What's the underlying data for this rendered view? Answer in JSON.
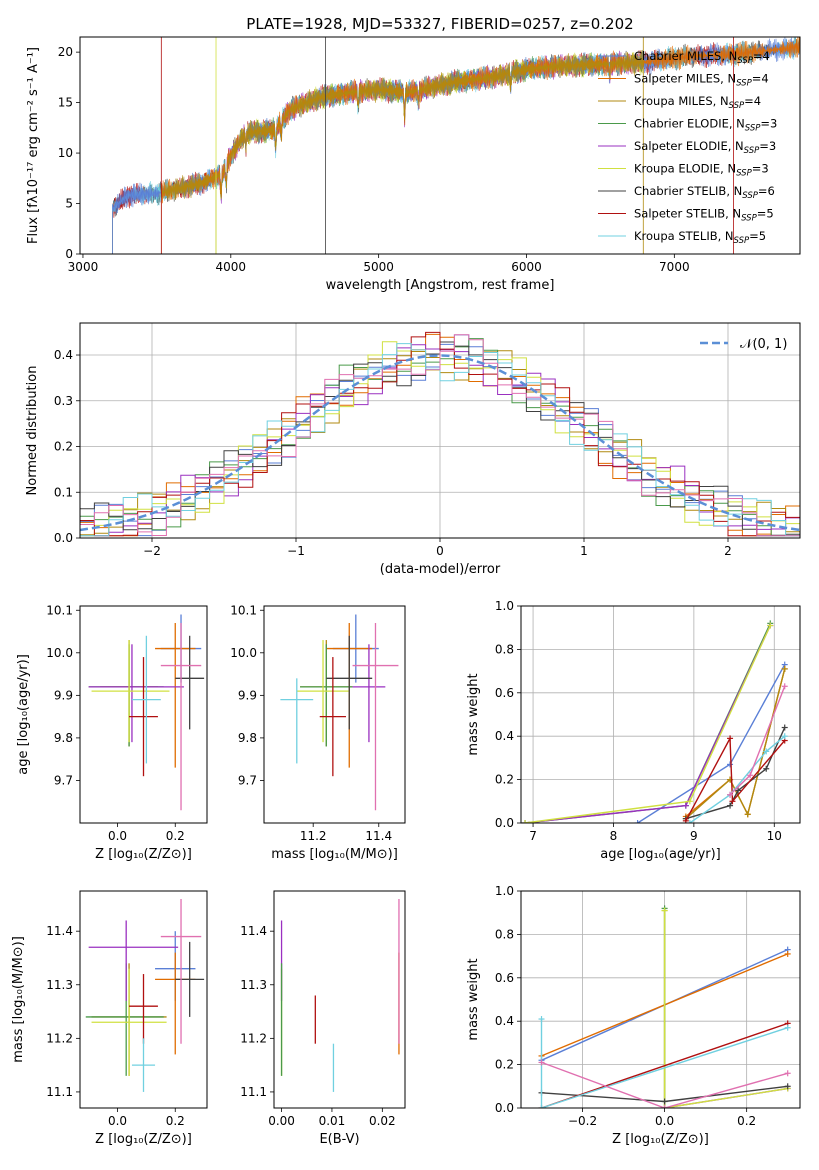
{
  "title": "PLATE=1928, MJD=53327, FIBERID=0257, z=0.202",
  "colors": {
    "ChM": "#5a7fd6",
    "SaM": "#e06c00",
    "KrM": "#b08a10",
    "ChE": "#4a9a4a",
    "SaE": "#9a30c0",
    "KrE": "#d0e040",
    "ChS": "#404040",
    "SaS": "#b01010",
    "KrS": "#70d0e0",
    "pinkline": "#e070b0",
    "gaussian": "#5b8fd6",
    "grid": "#b0b0b0"
  },
  "panels": {
    "spectrum": {
      "xlabel": "wavelength [Angstrom, rest frame]",
      "ylabel": "Flux [fλ10⁻¹⁷ erg cm⁻² s⁻¹ A⁻¹]",
      "legend": [
        {
          "key": "ChM",
          "prefix": "Chabrier MILES, N",
          "sub": "SSP",
          "suffix": "=4"
        },
        {
          "key": "SaM",
          "prefix": "Salpeter MILES, N",
          "sub": "SSP",
          "suffix": "=4"
        },
        {
          "key": "KrM",
          "prefix": "Kroupa MILES, N",
          "sub": "SSP",
          "suffix": "=4"
        },
        {
          "key": "ChE",
          "prefix": "Chabrier ELODIE, N",
          "sub": "SSP",
          "suffix": "=3"
        },
        {
          "key": "SaE",
          "prefix": "Salpeter ELODIE, N",
          "sub": "SSP",
          "suffix": "=3"
        },
        {
          "key": "KrE",
          "prefix": "Kroupa ELODIE, N",
          "sub": "SSP",
          "suffix": "=3"
        },
        {
          "key": "ChS",
          "prefix": "Chabrier STELIB, N",
          "sub": "SSP",
          "suffix": "=6"
        },
        {
          "key": "SaS",
          "prefix": "Salpeter STELIB, N",
          "sub": "SSP",
          "suffix": "=5"
        },
        {
          "key": "KrS",
          "prefix": "Kroupa STELIB, N",
          "sub": "SSP",
          "suffix": "=5"
        }
      ]
    },
    "residuals": {
      "xlabel": "(data-model)/error",
      "ylabel": "Normed distribution",
      "legend": "𝒩(0, 1)"
    },
    "age_Z": {
      "xlabel": "Z [log₁₀(Z/Z⊙)]",
      "ylabel": "age  [log₁₀(age/yr)]"
    },
    "age_mass": {
      "xlabel": "mass [log₁₀(M/M⊙)]"
    },
    "weight_age": {
      "xlabel": "age  [log₁₀(age/yr)]",
      "ylabel": "mass weight"
    },
    "mass_Z": {
      "xlabel": "Z [log₁₀(Z/Z⊙)]",
      "ylabel": "mass [log₁₀(M/M⊙)]"
    },
    "mass_ebv": {
      "xlabel": "E(B-V)"
    },
    "weight_Z": {
      "xlabel": "Z [log₁₀(Z/Z⊙)]",
      "ylabel": "mass weight"
    }
  },
  "chart_data": [
    {
      "type": "line",
      "title": "PLATE=1928, MJD=53327, FIBERID=0257, z=0.202",
      "xlabel": "wavelength [Angstrom, rest frame]",
      "ylabel": "Flux [fλ10⁻¹⁷ erg cm⁻² s⁻¹ A⁻¹]",
      "xlim": [
        2980,
        7850
      ],
      "ylim": [
        0,
        21.5
      ],
      "xticks": [
        3000,
        4000,
        5000,
        6000,
        7000
      ],
      "yticks": [
        0,
        5,
        10,
        15,
        20
      ],
      "grid": false,
      "legend_position": "upper right",
      "continuum": {
        "x": [
          3200,
          3300,
          3500,
          3800,
          3950,
          4000,
          4100,
          4300,
          4400,
          4600,
          4800,
          5000,
          5200,
          5500,
          5800,
          6000,
          6200,
          6500,
          6800,
          7100,
          7400,
          7850
        ],
        "y": [
          4.5,
          5.8,
          6.0,
          7.0,
          8.0,
          9.8,
          12.0,
          12.3,
          14.3,
          15.5,
          16.0,
          16.3,
          16.0,
          17.0,
          17.6,
          18.3,
          18.6,
          18.8,
          19.0,
          19.6,
          19.8,
          20.5
        ]
      },
      "series_starts": {
        "ChM": 3200,
        "SaM": 3530,
        "KrM": 3530,
        "ChE": 3900,
        "SaE": 3900,
        "KrE": 3900,
        "ChS": 3200,
        "SaS": 3200,
        "KrS": 3200
      },
      "series_ends": {
        "ChM": 7850,
        "SaM": 7850,
        "KrM": 6790,
        "ChE": 6790,
        "SaE": 6790,
        "KrE": 6790,
        "ChS": 7850,
        "SaS": 7400,
        "KrS": 7850
      },
      "vlines": [
        {
          "key": "ChS",
          "x": 4640
        },
        {
          "key": "SaS",
          "x": 3530
        },
        {
          "key": "KrE",
          "x": 3900
        },
        {
          "key": "KrM",
          "x": 6790
        },
        {
          "key": "SaS",
          "x": 7400
        }
      ]
    },
    {
      "type": "histogram",
      "xlabel": "(data-model)/error",
      "ylabel": "Normed distribution",
      "xlim": [
        -2.5,
        2.5
      ],
      "ylim": [
        0,
        0.47
      ],
      "xticks": [
        -2,
        -1,
        0,
        1,
        2
      ],
      "yticks": [
        0.0,
        0.1,
        0.2,
        0.3,
        0.4
      ],
      "grid": true,
      "legend_position": "upper right",
      "bin_width": 0.1,
      "gaussian": {
        "name": "𝒩(0, 1)",
        "mean": 0,
        "sigma": 1
      },
      "series_keys": [
        "ChM",
        "SaM",
        "KrM",
        "ChE",
        "SaE",
        "KrE",
        "ChS",
        "SaS",
        "KrS",
        "pinkline"
      ]
    },
    {
      "type": "scatter",
      "xlabel": "Z [log₁₀(Z/Z⊙)]",
      "ylabel": "age  [log₁₀(age/yr)]",
      "xlim": [
        -0.13,
        0.31
      ],
      "ylim": [
        9.6,
        10.11
      ],
      "xticks": [
        0.0,
        0.2
      ],
      "yticks": [
        9.7,
        9.8,
        9.9,
        10.0,
        10.1
      ],
      "grid": false,
      "points": [
        {
          "key": "ChM",
          "x": 0.22,
          "y": 10.01,
          "xerr": [
            0.07,
            0.07
          ],
          "yerr": [
            0.08,
            0.08
          ]
        },
        {
          "key": "SaM",
          "x": 0.2,
          "y": 10.01,
          "xerr": [
            0.07,
            0.07
          ],
          "yerr": [
            0.28,
            0.06
          ]
        },
        {
          "key": "KrM",
          "x": 0.04,
          "y": 9.92,
          "xerr": [
            0.1,
            0.1
          ],
          "yerr": [
            0.14,
            0.11
          ]
        },
        {
          "key": "ChE",
          "x": 0.04,
          "y": 9.92,
          "xerr": [
            0.14,
            0.12
          ],
          "yerr": [
            0.14,
            0.1
          ]
        },
        {
          "key": "SaE",
          "x": 0.05,
          "y": 9.92,
          "xerr": [
            0.15,
            0.18
          ],
          "yerr": [
            0.13,
            0.1
          ]
        },
        {
          "key": "KrE",
          "x": 0.04,
          "y": 9.91,
          "xerr": [
            0.13,
            0.14
          ],
          "yerr": [
            0.12,
            0.12
          ]
        },
        {
          "key": "ChS",
          "x": 0.25,
          "y": 9.94,
          "xerr": [
            0.05,
            0.05
          ],
          "yerr": [
            0.12,
            0.1
          ]
        },
        {
          "key": "SaS",
          "x": 0.09,
          "y": 9.85,
          "xerr": [
            0.05,
            0.05
          ],
          "yerr": [
            0.14,
            0.14
          ]
        },
        {
          "key": "KrS",
          "x": 0.1,
          "y": 9.89,
          "xerr": [
            0.05,
            0.05
          ],
          "yerr": [
            0.15,
            0.15
          ]
        },
        {
          "key": "pinkline",
          "x": 0.22,
          "y": 9.97,
          "xerr": [
            0.07,
            0.07
          ],
          "yerr": [
            0.34,
            0.1
          ]
        }
      ]
    },
    {
      "type": "scatter",
      "xlabel": "mass [log₁₀(M/M⊙)]",
      "xlim": [
        11.05,
        11.48
      ],
      "ylim": [
        9.6,
        10.11
      ],
      "xticks": [
        11.2,
        11.4
      ],
      "yticks": [
        9.7,
        9.8,
        9.9,
        10.0,
        10.1
      ],
      "grid": false,
      "points": [
        {
          "key": "ChM",
          "x": 11.33,
          "y": 10.01,
          "xerr": [
            0.07,
            0.07
          ],
          "yerr": [
            0.08,
            0.08
          ]
        },
        {
          "key": "SaM",
          "x": 11.31,
          "y": 10.01,
          "xerr": [
            0.07,
            0.07
          ],
          "yerr": [
            0.28,
            0.06
          ]
        },
        {
          "key": "KrM",
          "x": 11.24,
          "y": 9.92,
          "xerr": [
            0.08,
            0.08
          ],
          "yerr": [
            0.14,
            0.11
          ]
        },
        {
          "key": "ChE",
          "x": 11.24,
          "y": 9.92,
          "xerr": [
            0.08,
            0.08
          ],
          "yerr": [
            0.14,
            0.1
          ]
        },
        {
          "key": "SaE",
          "x": 11.37,
          "y": 9.92,
          "xerr": [
            0.05,
            0.05
          ],
          "yerr": [
            0.13,
            0.1
          ]
        },
        {
          "key": "KrE",
          "x": 11.23,
          "y": 9.91,
          "xerr": [
            0.08,
            0.08
          ],
          "yerr": [
            0.12,
            0.12
          ]
        },
        {
          "key": "ChS",
          "x": 11.31,
          "y": 9.94,
          "xerr": [
            0.07,
            0.07
          ],
          "yerr": [
            0.12,
            0.1
          ]
        },
        {
          "key": "SaS",
          "x": 11.26,
          "y": 9.85,
          "xerr": [
            0.04,
            0.04
          ],
          "yerr": [
            0.14,
            0.14
          ]
        },
        {
          "key": "KrS",
          "x": 11.15,
          "y": 9.89,
          "xerr": [
            0.05,
            0.05
          ],
          "yerr": [
            0.15,
            0.05
          ]
        },
        {
          "key": "pinkline",
          "x": 11.39,
          "y": 9.97,
          "xerr": [
            0.07,
            0.07
          ],
          "yerr": [
            0.34,
            0.1
          ]
        }
      ]
    },
    {
      "type": "line",
      "xlabel": "age  [log₁₀(age/yr)]",
      "ylabel": "mass weight",
      "xlim": [
        6.85,
        10.32
      ],
      "ylim": [
        0,
        1.0
      ],
      "xticks": [
        7,
        8,
        9,
        10
      ],
      "yticks": [
        0.0,
        0.2,
        0.4,
        0.6,
        0.8,
        1.0
      ],
      "grid": true,
      "series": [
        {
          "key": "ChM",
          "x": [
            8.3,
            9.45,
            10.13
          ],
          "y": [
            0.0,
            0.27,
            0.73
          ]
        },
        {
          "key": "SaM",
          "x": [
            8.9,
            9.45,
            9.67,
            10.13
          ],
          "y": [
            0.03,
            0.2,
            0.04,
            0.71
          ]
        },
        {
          "key": "KrM",
          "x": [
            8.9,
            9.45,
            9.67,
            10.13
          ],
          "y": [
            0.02,
            0.2,
            0.04,
            0.71
          ]
        },
        {
          "key": "ChE",
          "x": [
            6.9,
            8.9,
            9.95
          ],
          "y": [
            0.0,
            0.08,
            0.92
          ]
        },
        {
          "key": "SaE",
          "x": [
            6.9,
            8.9,
            9.95
          ],
          "y": [
            0.0,
            0.08,
            0.91
          ]
        },
        {
          "key": "KrE",
          "x": [
            6.9,
            8.95,
            9.95
          ],
          "y": [
            0.0,
            0.1,
            0.91
          ]
        },
        {
          "key": "ChS",
          "x": [
            8.9,
            9.45,
            9.55,
            9.9,
            10.13
          ],
          "y": [
            0.02,
            0.08,
            0.15,
            0.25,
            0.44
          ]
        },
        {
          "key": "SaS",
          "x": [
            8.9,
            9.45,
            9.48,
            10.13
          ],
          "y": [
            0.01,
            0.39,
            0.1,
            0.38
          ]
        },
        {
          "key": "KrS",
          "x": [
            8.95,
            9.45,
            9.9,
            10.13
          ],
          "y": [
            0.0,
            0.13,
            0.33,
            0.4
          ]
        },
        {
          "key": "pinkline",
          "x": [
            9.45,
            9.7,
            10.13
          ],
          "y": [
            0.13,
            0.22,
            0.63
          ]
        }
      ]
    },
    {
      "type": "scatter",
      "xlabel": "Z [log₁₀(Z/Z⊙)]",
      "ylabel": "mass [log₁₀(M/M⊙)]",
      "xlim": [
        -0.13,
        0.31
      ],
      "ylim": [
        11.07,
        11.475
      ],
      "xticks": [
        0.0,
        0.2
      ],
      "yticks": [
        11.1,
        11.2,
        11.3,
        11.4
      ],
      "grid": false,
      "points": [
        {
          "key": "ChM",
          "x": 0.2,
          "y": 11.33,
          "xerr": [
            0.07,
            0.07
          ],
          "yerr": [
            0.06,
            0.07
          ]
        },
        {
          "key": "SaM",
          "x": 0.2,
          "y": 11.31,
          "xerr": [
            0.07,
            0.07
          ],
          "yerr": [
            0.14,
            0.05
          ]
        },
        {
          "key": "KrM",
          "x": 0.04,
          "y": 11.24,
          "xerr": [
            0.13,
            0.13
          ],
          "yerr": [
            0.11,
            0.1
          ]
        },
        {
          "key": "ChE",
          "x": 0.03,
          "y": 11.24,
          "xerr": [
            0.14,
            0.13
          ],
          "yerr": [
            0.11,
            0.1
          ]
        },
        {
          "key": "SaE",
          "x": 0.03,
          "y": 11.37,
          "xerr": [
            0.13,
            0.18
          ],
          "yerr": [
            0.1,
            0.05
          ]
        },
        {
          "key": "KrE",
          "x": 0.04,
          "y": 11.23,
          "xerr": [
            0.13,
            0.13
          ],
          "yerr": [
            0.1,
            0.1
          ]
        },
        {
          "key": "ChS",
          "x": 0.25,
          "y": 11.31,
          "xerr": [
            0.05,
            0.05
          ],
          "yerr": [
            0.07,
            0.07
          ]
        },
        {
          "key": "SaS",
          "x": 0.09,
          "y": 11.26,
          "xerr": [
            0.05,
            0.05
          ],
          "yerr": [
            0.07,
            0.06
          ]
        },
        {
          "key": "KrS",
          "x": 0.09,
          "y": 11.15,
          "xerr": [
            0.04,
            0.04
          ],
          "yerr": [
            0.05,
            0.05
          ]
        },
        {
          "key": "pinkline",
          "x": 0.22,
          "y": 11.39,
          "xerr": [
            0.07,
            0.07
          ],
          "yerr": [
            0.2,
            0.07
          ]
        }
      ]
    },
    {
      "type": "scatter",
      "xlabel": "E(B-V)",
      "xlim": [
        -0.0015,
        0.0245
      ],
      "ylim": [
        11.07,
        11.475
      ],
      "xticks": [
        0.0,
        0.01,
        0.02
      ],
      "yticks": [
        11.1,
        11.2,
        11.3,
        11.4
      ],
      "grid": false,
      "points": [
        {
          "key": "KrE",
          "x": 0.0,
          "y": 11.23,
          "yerr": [
            0.1,
            0.1
          ]
        },
        {
          "key": "SaE",
          "x": 0.0,
          "y": 11.37,
          "yerr": [
            0.1,
            0.05
          ]
        },
        {
          "key": "ChE",
          "x": 0.0,
          "y": 11.24,
          "yerr": [
            0.11,
            0.1
          ]
        },
        {
          "key": "SaS",
          "x": 0.0067,
          "y": 11.24,
          "yerr": [
            0.05,
            0.04
          ]
        },
        {
          "key": "KrS",
          "x": 0.0103,
          "y": 11.15,
          "yerr": [
            0.05,
            0.04
          ]
        },
        {
          "key": "SaM",
          "x": 0.0233,
          "y": 11.31,
          "yerr": [
            0.14,
            0.05
          ]
        },
        {
          "key": "pinkline",
          "x": 0.0233,
          "y": 11.39,
          "yerr": [
            0.2,
            0.07
          ]
        }
      ]
    },
    {
      "type": "line",
      "xlabel": "Z [log₁₀(Z/Z⊙)]",
      "ylabel": "mass weight",
      "xlim": [
        -0.35,
        0.33
      ],
      "ylim": [
        0,
        1.0
      ],
      "xticks": [
        -0.2,
        0.0,
        0.2
      ],
      "yticks": [
        0.0,
        0.2,
        0.4,
        0.6,
        0.8,
        1.0
      ],
      "grid": true,
      "series": [
        {
          "key": "ChM",
          "x": [
            -0.3,
            0.3
          ],
          "y": [
            0.22,
            0.73
          ]
        },
        {
          "key": "SaM",
          "x": [
            -0.3,
            0.3
          ],
          "y": [
            0.24,
            0.71
          ]
        },
        {
          "key": "KrM",
          "x": [
            0.0,
            0.0
          ],
          "y": [
            0.0,
            0.91
          ]
        },
        {
          "key": "ChE",
          "x": [
            0.0,
            0.0
          ],
          "y": [
            0.0,
            0.92
          ]
        },
        {
          "key": "SaE",
          "x": [
            0.0,
            0.3
          ],
          "y": [
            0.0,
            0.09
          ]
        },
        {
          "key": "KrE",
          "x": [
            0.0,
            0.0,
            0.3
          ],
          "y": [
            0.91,
            0.0,
            0.09
          ]
        },
        {
          "key": "ChS",
          "x": [
            -0.3,
            0.0,
            0.3
          ],
          "y": [
            0.07,
            0.03,
            0.1
          ]
        },
        {
          "key": "SaS",
          "x": [
            -0.3,
            0.3
          ],
          "y": [
            0.0,
            0.39
          ]
        },
        {
          "key": "KrS",
          "x": [
            -0.3,
            -0.3,
            0.3
          ],
          "y": [
            0.41,
            0.0,
            0.37
          ]
        },
        {
          "key": "pinkline",
          "x": [
            -0.3,
            0.0,
            0.3
          ],
          "y": [
            0.21,
            0.0,
            0.16
          ]
        }
      ]
    }
  ]
}
